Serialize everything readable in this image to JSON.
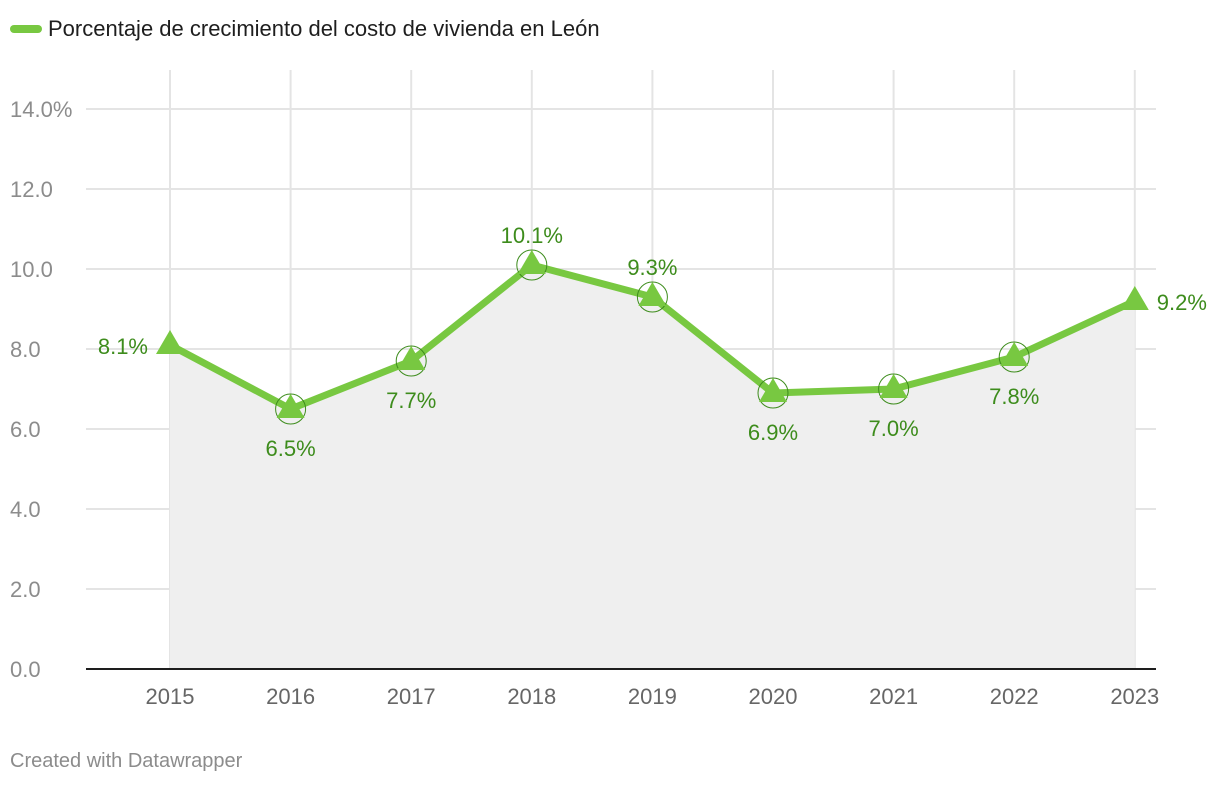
{
  "chart_data": {
    "type": "area",
    "title": "",
    "legend": [
      {
        "label": "Porcentaje de crecimiento del costo de vivienda en León",
        "color": "#78c841"
      }
    ],
    "x": [
      "2015",
      "2016",
      "2017",
      "2018",
      "2019",
      "2020",
      "2021",
      "2022",
      "2023"
    ],
    "series": [
      {
        "name": "Porcentaje de crecimiento del costo de vivienda en León",
        "values": [
          8.1,
          6.5,
          7.7,
          10.1,
          9.3,
          6.9,
          7.0,
          7.8,
          9.2
        ],
        "labels": [
          "8.1%",
          "6.5%",
          "7.7%",
          "10.1%",
          "9.3%",
          "6.9%",
          "7.0%",
          "7.8%",
          "9.2%"
        ],
        "color": "#78c841",
        "label_color": "#3d8c1c"
      }
    ],
    "ylim": [
      0,
      14
    ],
    "y_ticks": [
      0,
      2,
      4,
      6,
      8,
      10,
      12,
      14
    ],
    "y_tick_labels": [
      "0.0",
      "2.0",
      "4.0",
      "6.0",
      "8.0",
      "10.0",
      "12.0",
      "14.0%"
    ],
    "xlabel": "",
    "ylabel": "",
    "grid": true,
    "area_fill": "#efefef"
  },
  "footer": {
    "credit": "Created with Datawrapper"
  }
}
